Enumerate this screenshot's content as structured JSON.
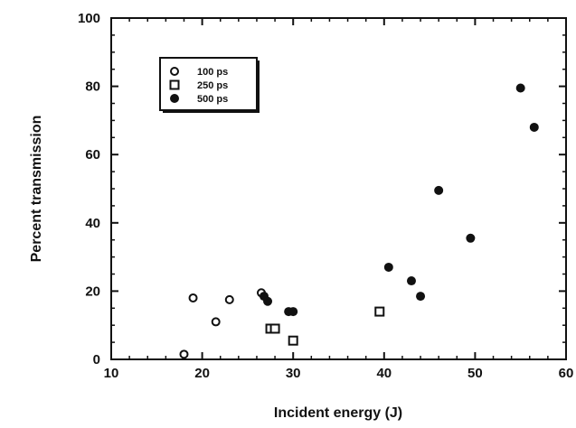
{
  "chart_data": {
    "type": "scatter",
    "xlabel": "Incident energy (J)",
    "ylabel": "Percent transmission",
    "xlim": [
      10,
      60
    ],
    "ylim": [
      0,
      100
    ],
    "xticks": [
      "10",
      "20",
      "30",
      "40",
      "50",
      "60"
    ],
    "yticks": [
      "0",
      "20",
      "40",
      "60",
      "80",
      "100"
    ],
    "grid": false,
    "legend_position": "top-left",
    "series": [
      {
        "name": "100 ps",
        "marker": "open-circle",
        "points": [
          [
            18,
            1.5
          ],
          [
            19,
            18
          ],
          [
            21.5,
            11
          ],
          [
            23,
            17.5
          ],
          [
            26.5,
            19.5
          ]
        ]
      },
      {
        "name": "250 ps",
        "marker": "open-square",
        "points": [
          [
            27.5,
            9
          ],
          [
            28,
            9
          ],
          [
            30,
            5.5
          ],
          [
            39.5,
            14
          ]
        ]
      },
      {
        "name": "500 ps",
        "marker": "filled-circle",
        "points": [
          [
            26.8,
            18.5
          ],
          [
            27.2,
            17
          ],
          [
            29.5,
            14
          ],
          [
            30,
            14
          ],
          [
            40.5,
            27
          ],
          [
            43,
            23
          ],
          [
            44,
            18.5
          ],
          [
            46,
            49.5
          ],
          [
            49.5,
            35.5
          ],
          [
            55,
            79.5
          ],
          [
            56.5,
            68
          ]
        ]
      }
    ]
  }
}
